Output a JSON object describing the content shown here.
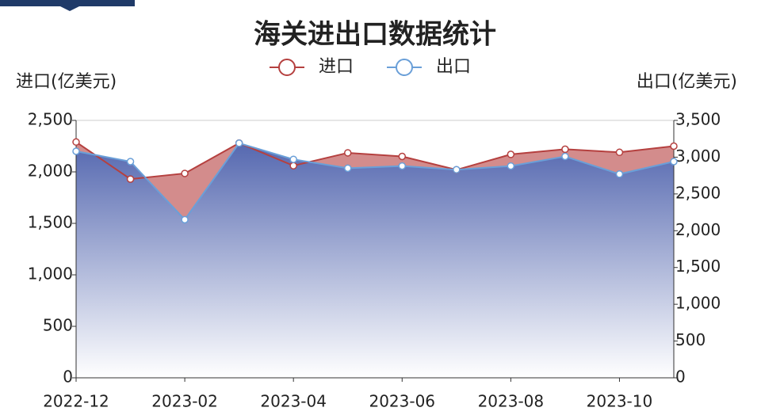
{
  "chart_data": {
    "type": "line",
    "title": "海关进出口数据统计",
    "y_label": "进口(亿美元)",
    "y2_label": "出口(亿美元)",
    "categories": [
      "2022-12",
      null,
      "2023-02",
      null,
      "2023-04",
      null,
      "2023-06",
      null,
      "2023-08",
      null,
      "2023-10",
      null
    ],
    "series": [
      {
        "name": "进口",
        "color": "#b5403f",
        "values": [
          2290,
          1930,
          1985,
          2280,
          2060,
          2185,
          2150,
          2020,
          2170,
          2220,
          2190,
          2250
        ]
      },
      {
        "name": "出口",
        "color": "#6a9fd8",
        "axis": "y2",
        "values": [
          3080,
          2940,
          2150,
          3190,
          2970,
          2850,
          2880,
          2830,
          2880,
          3010,
          2770,
          2940
        ]
      }
    ],
    "ylim": [
      0,
      2500
    ],
    "yticks": [
      0,
      500,
      {
        "value": 1000,
        "label": "1,000"
      },
      {
        "value": 1500,
        "label": "1,500"
      },
      {
        "value": 2000,
        "label": "2,000"
      },
      {
        "value": 2500,
        "label": "2,500"
      }
    ],
    "y2lim": [
      0,
      3500
    ],
    "y2ticks": [
      0,
      500,
      {
        "value": 1000,
        "label": "1,000"
      },
      {
        "value": 1500,
        "label": "1,500"
      },
      {
        "value": 2000,
        "label": "2,000"
      },
      {
        "value": 2500,
        "label": "2,500"
      },
      {
        "value": 3000,
        "label": "3,000"
      },
      {
        "value": 3500,
        "label": "3,500"
      }
    ],
    "grid": false
  }
}
